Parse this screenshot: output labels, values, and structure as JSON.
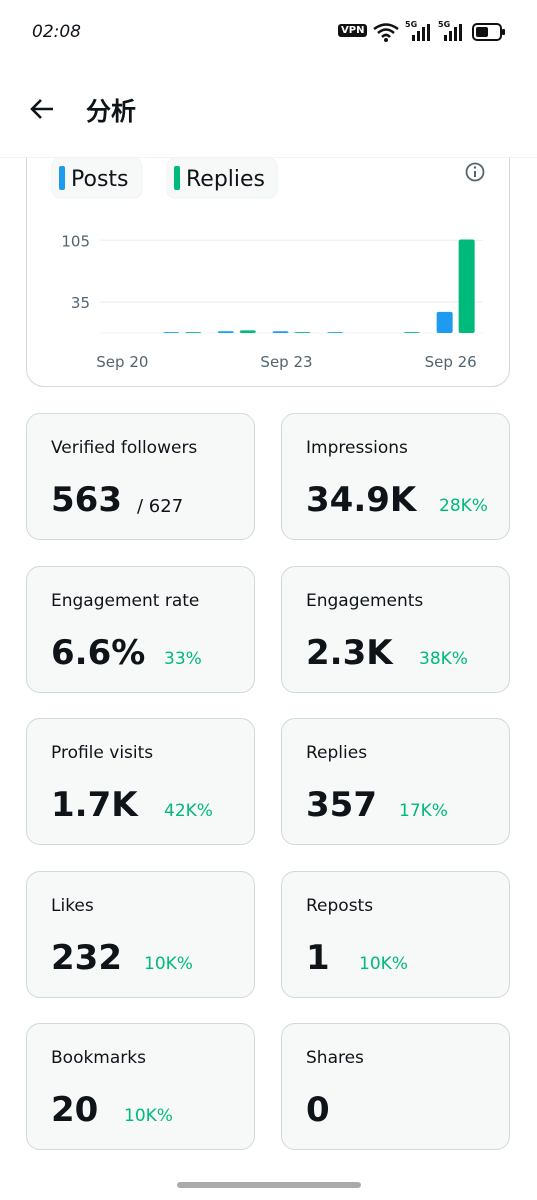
{
  "status_bar": {
    "time": "02:08",
    "vpn": "VPN",
    "network_1": "5G",
    "network_2": "5G"
  },
  "header": {
    "title": "分析"
  },
  "chart_data": {
    "type": "bar",
    "categories": [
      "Sep 20",
      null,
      null,
      "Sep 23",
      null,
      null,
      "Sep 26"
    ],
    "series": [
      {
        "name": "Posts",
        "color": "#1d9bf0",
        "values": [
          0,
          1,
          2,
          2,
          1,
          0,
          24
        ]
      },
      {
        "name": "Replies",
        "color": "#00ba7c",
        "values": [
          0,
          1,
          3,
          1,
          0,
          1,
          106
        ]
      }
    ],
    "ylim": [
      0,
      110
    ],
    "yticks": [
      35,
      105
    ],
    "grid": true
  },
  "metrics": [
    {
      "title": "Verified followers",
      "value": "563",
      "total": "/ 627"
    },
    {
      "title": "Impressions",
      "value": "34.9K",
      "change": "28K%"
    },
    {
      "title": "Engagement rate",
      "value": "6.6%",
      "change": "33%"
    },
    {
      "title": "Engagements",
      "value": "2.3K",
      "change": "38K%"
    },
    {
      "title": "Profile visits",
      "value": "1.7K",
      "change": "42K%"
    },
    {
      "title": "Replies",
      "value": "357",
      "change": "17K%"
    },
    {
      "title": "Likes",
      "value": "232",
      "change": "10K%"
    },
    {
      "title": "Reposts",
      "value": "1",
      "change": "10K%"
    },
    {
      "title": "Bookmarks",
      "value": "20",
      "change": "10K%"
    },
    {
      "title": "Shares",
      "value": "0"
    }
  ]
}
